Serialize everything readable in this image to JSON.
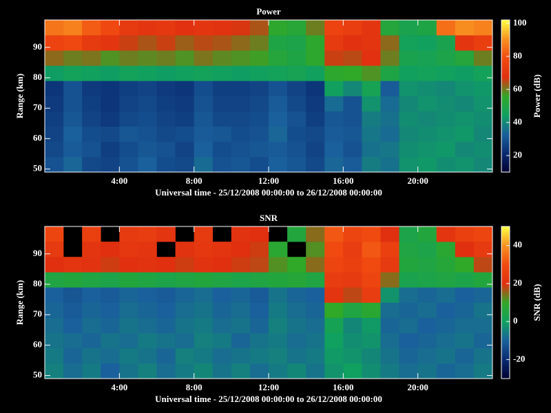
{
  "chart_data": [
    {
      "type": "heatmap",
      "title": "Power",
      "xlabel": "Universal time - 25/12/2008 00:00:00 to 26/12/2008 00:00:00",
      "ylabel": "Range (km)",
      "colorbar_label": "Power (dB)",
      "xbins": [
        0,
        1,
        2,
        3,
        4,
        5,
        6,
        7,
        8,
        9,
        10,
        11,
        12,
        13,
        14,
        15,
        16,
        17,
        18,
        19,
        20,
        21,
        22,
        23,
        24
      ],
      "ybins": [
        49,
        54,
        59,
        64,
        69,
        74,
        79,
        84,
        89,
        94,
        99
      ],
      "xlim": [
        0,
        24
      ],
      "ylim": [
        49,
        99
      ],
      "xticks": [
        {
          "value": 4,
          "label": "4:00"
        },
        {
          "value": 8,
          "label": "8:00"
        },
        {
          "value": 12,
          "label": "12:00"
        },
        {
          "value": 16,
          "label": "16:00"
        },
        {
          "value": 20,
          "label": "20:00"
        }
      ],
      "yticks": [
        50,
        60,
        70,
        80,
        90
      ],
      "zlim": [
        10,
        102
      ],
      "zticks": [
        20,
        40,
        60,
        80,
        100
      ],
      "colorscale": [
        "#000030",
        "#0a2a70",
        "#1a609c",
        "#10a060",
        "#30a828",
        "#e03010",
        "#f04a10",
        "#f89020",
        "#ffff40"
      ],
      "z": [
        [
          30,
          34,
          28,
          27,
          30,
          33,
          29,
          28,
          35,
          30,
          31,
          29,
          33,
          31,
          28,
          34,
          32,
          38,
          36,
          42,
          43,
          41,
          42,
          40
        ],
        [
          28,
          32,
          30,
          26,
          29,
          31,
          30,
          27,
          33,
          29,
          30,
          31,
          32,
          30,
          27,
          33,
          30,
          36,
          37,
          41,
          42,
          43,
          40,
          41
        ],
        [
          27,
          33,
          29,
          28,
          31,
          30,
          28,
          29,
          32,
          31,
          29,
          30,
          34,
          29,
          28,
          32,
          31,
          37,
          35,
          40,
          41,
          42,
          43,
          40
        ],
        [
          26,
          31,
          27,
          25,
          28,
          29,
          27,
          26,
          31,
          28,
          28,
          29,
          33,
          30,
          26,
          31,
          30,
          38,
          36,
          41,
          40,
          41,
          42,
          41
        ],
        [
          25,
          30,
          26,
          24,
          27,
          28,
          26,
          25,
          30,
          27,
          27,
          28,
          32,
          28,
          25,
          35,
          30,
          42,
          35,
          40,
          42,
          41,
          40,
          42
        ],
        [
          24,
          30,
          25,
          24,
          26,
          27,
          25,
          24,
          29,
          26,
          26,
          27,
          30,
          27,
          24,
          45,
          40,
          47,
          32,
          42,
          41,
          40,
          42,
          43
        ],
        [
          44,
          46,
          45,
          44,
          46,
          45,
          44,
          45,
          46,
          45,
          44,
          45,
          46,
          47,
          45,
          55,
          56,
          58,
          50,
          45,
          46,
          45,
          44,
          46
        ],
        [
          62,
          60,
          61,
          58,
          60,
          59,
          60,
          58,
          61,
          59,
          58,
          57,
          52,
          50,
          55,
          66,
          65,
          68,
          60,
          48,
          47,
          49,
          52,
          60
        ],
        [
          76,
          78,
          72,
          70,
          66,
          64,
          66,
          63,
          65,
          64,
          62,
          60,
          50,
          49,
          55,
          72,
          68,
          70,
          62,
          46,
          45,
          48,
          70,
          74
        ],
        [
          86,
          88,
          82,
          78,
          72,
          70,
          71,
          68,
          70,
          69,
          67,
          64,
          55,
          53,
          60,
          76,
          74,
          70,
          52,
          48,
          50,
          85,
          90,
          88
        ]
      ]
    },
    {
      "type": "heatmap",
      "title": "SNR",
      "xlabel": "Universal time - 25/12/2008 00:00:00 to 26/12/2008 00:00:00",
      "ylabel": "Range (km)",
      "colorbar_label": "SNR (dB)",
      "xbins": [
        0,
        1,
        2,
        3,
        4,
        5,
        6,
        7,
        8,
        9,
        10,
        11,
        12,
        13,
        14,
        15,
        16,
        17,
        18,
        19,
        20,
        21,
        22,
        23,
        24
      ],
      "ybins": [
        49,
        54,
        59,
        64,
        69,
        74,
        79,
        84,
        89,
        94,
        99
      ],
      "xlim": [
        0,
        24
      ],
      "ylim": [
        49,
        99
      ],
      "xticks": [
        {
          "value": 4,
          "label": "4:00"
        },
        {
          "value": 8,
          "label": "8:00"
        },
        {
          "value": 12,
          "label": "12:00"
        },
        {
          "value": 16,
          "label": "16:00"
        },
        {
          "value": 20,
          "label": "20:00"
        }
      ],
      "yticks": [
        50,
        60,
        70,
        80,
        90
      ],
      "zlim": [
        -30,
        50
      ],
      "zticks": [
        -20,
        0,
        20,
        40
      ],
      "colorscale": [
        "#000030",
        "#0a2a70",
        "#1a609c",
        "#10a060",
        "#30a828",
        "#e03010",
        "#f04a10",
        "#f89020",
        "#ffff40"
      ],
      "z": [
        [
          -5,
          -8,
          -6,
          -10,
          -7,
          -5,
          -8,
          -6,
          -4,
          -7,
          -5,
          -8,
          -6,
          -4,
          -7,
          -2,
          0,
          -3,
          -6,
          -8,
          -7,
          -9,
          -8,
          -6
        ],
        [
          -6,
          -9,
          -7,
          -8,
          -6,
          -7,
          -9,
          -5,
          -6,
          -8,
          -7,
          -6,
          -5,
          -7,
          -6,
          -1,
          -2,
          -4,
          -7,
          -9,
          -8,
          -7,
          -9,
          -7
        ],
        [
          -7,
          -8,
          -9,
          -7,
          -8,
          -6,
          -7,
          -8,
          -5,
          -6,
          -9,
          -7,
          -6,
          -8,
          -7,
          0,
          -3,
          -2,
          -8,
          -10,
          -9,
          -8,
          -7,
          -9
        ],
        [
          -8,
          -10,
          -8,
          -9,
          -7,
          -8,
          -9,
          -7,
          -6,
          -8,
          -7,
          -9,
          -5,
          -7,
          -8,
          2,
          -4,
          -1,
          -9,
          -8,
          -10,
          -9,
          -8,
          -8
        ],
        [
          -9,
          -11,
          -9,
          -10,
          -8,
          -9,
          -10,
          -8,
          -7,
          -9,
          -8,
          -10,
          -6,
          -8,
          -9,
          10,
          5,
          8,
          -8,
          -9,
          -8,
          -10,
          -9,
          -7
        ],
        [
          -10,
          -12,
          -10,
          -11,
          -9,
          -10,
          -11,
          -9,
          -8,
          -10,
          -9,
          -11,
          -7,
          -9,
          -10,
          22,
          18,
          25,
          -2,
          -8,
          -9,
          -8,
          -10,
          -9
        ],
        [
          5,
          6,
          5,
          4,
          6,
          5,
          4,
          5,
          6,
          5,
          4,
          5,
          6,
          7,
          5,
          25,
          24,
          28,
          15,
          3,
          4,
          5,
          4,
          6
        ],
        [
          20,
          22,
          21,
          19,
          20,
          21,
          20,
          19,
          21,
          20,
          19,
          18,
          12,
          10,
          15,
          28,
          26,
          30,
          24,
          6,
          5,
          7,
          10,
          18
        ],
        [
          24,
          null,
          22,
          20,
          23,
          22,
          null,
          21,
          23,
          22,
          20,
          19,
          8,
          null,
          12,
          30,
          25,
          32,
          26,
          5,
          4,
          8,
          20,
          24
        ],
        [
          28,
          null,
          26,
          null,
          24,
          25,
          22,
          null,
          24,
          null,
          21,
          20,
          null,
          6,
          15,
          32,
          28,
          30,
          20,
          4,
          6,
          22,
          26,
          28
        ]
      ]
    }
  ]
}
